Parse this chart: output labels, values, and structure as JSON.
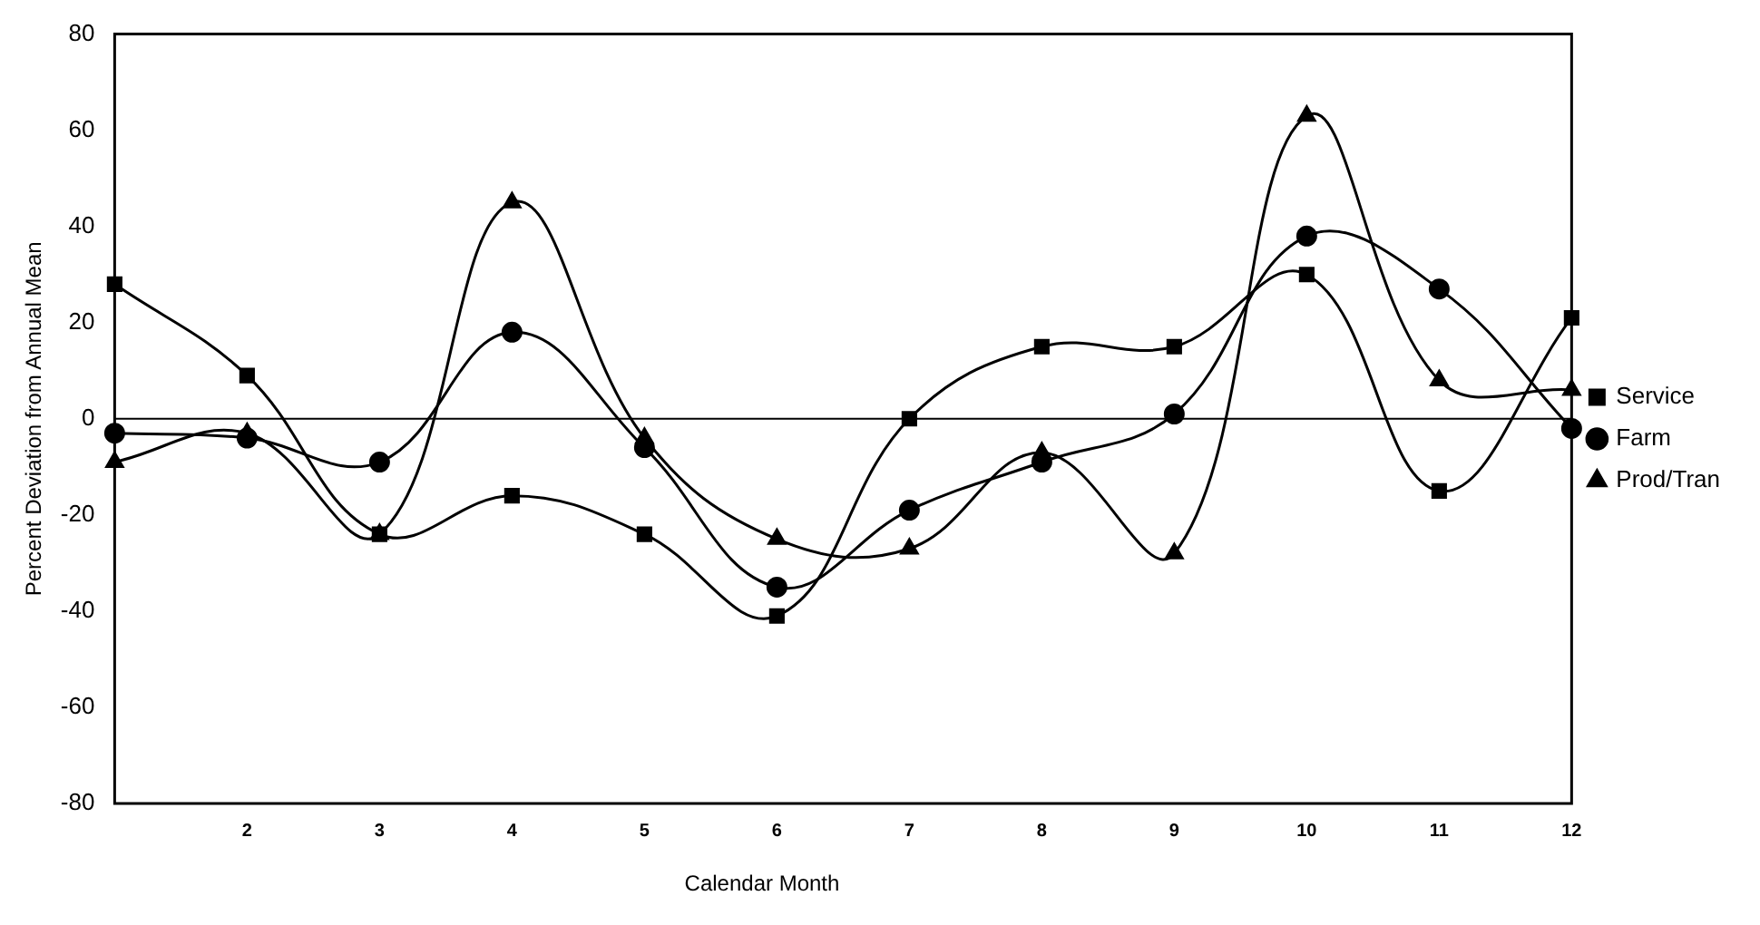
{
  "chart_data": {
    "type": "line",
    "xlabel": "Calendar Month",
    "ylabel": "Percent Deviation from Annual Mean",
    "categories": [
      null,
      "2",
      "3",
      "4",
      "5",
      "6",
      "7",
      "8",
      "9",
      "10",
      "11",
      "12"
    ],
    "series": [
      {
        "name": "Service",
        "color": "#000000",
        "marker": "square",
        "values": [
          28,
          9,
          -24,
          -16,
          -24,
          -41,
          0,
          15,
          15,
          30,
          -15,
          21
        ]
      },
      {
        "name": "Farm",
        "color": "#000000",
        "marker": "circle",
        "values": [
          -3,
          -4,
          -9,
          18,
          -6,
          -35,
          -19,
          -9,
          1,
          38,
          27,
          -2
        ]
      },
      {
        "name": "Prod/Tran",
        "color": "#000000",
        "marker": "triangle",
        "values": [
          -9,
          -3,
          -24,
          45,
          -4,
          -25,
          -27,
          -7,
          -28,
          63,
          8,
          6
        ]
      }
    ],
    "ref_lines": [
      {
        "axis": "y",
        "value": 0,
        "color": "#000000"
      }
    ],
    "ylim": [
      -80,
      80
    ],
    "yticks": [
      -80,
      -60,
      -40,
      -20,
      0,
      20,
      40,
      60,
      80
    ],
    "grid": false,
    "legend": "right"
  }
}
